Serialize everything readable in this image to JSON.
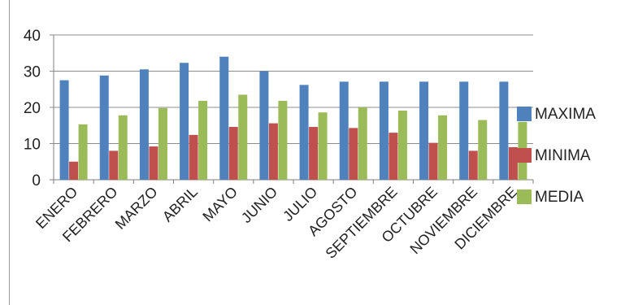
{
  "chart_data": {
    "type": "bar",
    "categories": [
      "ENERO",
      "FEBRERO",
      "MARZO",
      "ABRIL",
      "MAYO",
      "JUNIO",
      "JULIO",
      "AGOSTO",
      "SEPTIEMBRE",
      "OCTUBRE",
      "NOVIEMBRE",
      "DICIEMBRE"
    ],
    "series": [
      {
        "name": "MAXIMA",
        "color": "#4f81bd",
        "values": [
          27.5,
          28.8,
          30.5,
          32.3,
          34,
          30,
          26.2,
          27.1,
          27.1,
          27.1,
          27.1,
          27.1
        ]
      },
      {
        "name": "MINIMA",
        "color": "#c0504d",
        "values": [
          5,
          8,
          9.2,
          12.4,
          14.6,
          15.6,
          14.6,
          14.3,
          13,
          10.2,
          8,
          9
        ]
      },
      {
        "name": "MEDIA",
        "color": "#9bbb59",
        "values": [
          15.3,
          17.8,
          19.8,
          21.8,
          23.5,
          21.8,
          18.6,
          20,
          19.1,
          17.8,
          16.5,
          16
        ]
      }
    ],
    "y_ticks": [
      "0",
      "10",
      "20",
      "30",
      "40"
    ],
    "ylim": [
      0,
      40
    ],
    "grid": true,
    "legend_position": "right"
  }
}
